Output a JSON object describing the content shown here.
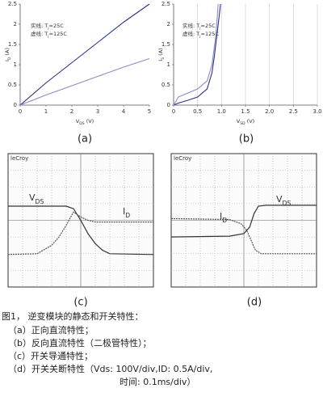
{
  "chart_data": [
    {
      "type": "line",
      "label": "(a)",
      "xlabel": {
        "text": "V",
        "sub": "DS",
        "after": " (V)"
      },
      "ylabel": {
        "text": "I",
        "sub": "D",
        "after": " (A)"
      },
      "xlim": [
        0,
        5
      ],
      "ylim": [
        0,
        2.5
      ],
      "xticks": [
        0,
        1,
        2,
        3,
        4,
        5
      ],
      "yticks": [
        0,
        0.5,
        1,
        1.5,
        2,
        2.5
      ],
      "grid": false,
      "legend": [
        {
          "text": "实线:    T",
          "sub": "j",
          "after": "=25C"
        },
        {
          "text": "虚线:    T",
          "sub": "j",
          "after": "=125C"
        }
      ],
      "series": [
        {
          "color": "#2e3186",
          "x": [
            0,
            1,
            2,
            3,
            4,
            5
          ],
          "values": [
            0,
            0.55,
            1.05,
            1.55,
            2.05,
            2.5
          ]
        },
        {
          "color": "#8a8cc4",
          "x": [
            0,
            1,
            2,
            3,
            4,
            5
          ],
          "values": [
            0,
            0.25,
            0.48,
            0.71,
            0.94,
            1.15
          ]
        }
      ]
    },
    {
      "type": "line",
      "label": "(b)",
      "xlabel": {
        "text": "V",
        "sub": "SD",
        "after": " (V)"
      },
      "ylabel": {
        "text": "I",
        "sub": "S",
        "after": " (A)"
      },
      "xlim": [
        0,
        3
      ],
      "ylim": [
        0,
        2.5
      ],
      "xticks": [
        0,
        0.5,
        {
          "value": 1,
          "label": "1.0"
        },
        1.5,
        {
          "value": 2,
          "label": "2.0"
        },
        2.5,
        {
          "value": 3,
          "label": "3.0"
        }
      ],
      "yticks": [
        0,
        0.5,
        1,
        1.5,
        2,
        2.5
      ],
      "grid": true,
      "legend": [
        {
          "text": "实线:    T",
          "sub": "j",
          "after": "=25C"
        },
        {
          "text": "虚线:    T",
          "sub": "j",
          "after": "=125C"
        }
      ],
      "series": [
        {
          "color": "#2e3186",
          "x": [
            0,
            0.1,
            0.3,
            0.5,
            0.7,
            0.8,
            0.85,
            0.9,
            0.95,
            0.98
          ],
          "values": [
            0,
            0.05,
            0.12,
            0.2,
            0.4,
            0.8,
            1.2,
            1.7,
            2.2,
            2.5
          ]
        },
        {
          "color": "#8a8cc4",
          "x": [
            0,
            0.1,
            0.3,
            0.5,
            0.7,
            0.8,
            0.88,
            0.93
          ],
          "values": [
            0,
            0.2,
            0.3,
            0.4,
            0.6,
            1.0,
            1.7,
            2.5
          ]
        }
      ]
    },
    {
      "type": "scope",
      "label": "(c)",
      "brand": "leCroy",
      "xlim": [
        0,
        10
      ],
      "ylim": [
        0,
        8
      ],
      "series": [
        {
          "label": {
            "text": "V",
            "sub": "DS"
          },
          "color": "#333333",
          "x": [
            0,
            4,
            4.5,
            5,
            5.5,
            6,
            6.5,
            7,
            10
          ],
          "values": [
            4.85,
            4.85,
            4.7,
            4.0,
            3.2,
            2.6,
            2.2,
            2.0,
            1.95
          ]
        },
        {
          "label": {
            "text": "I",
            "sub": "D"
          },
          "color": "#555555",
          "x": [
            0,
            2,
            3,
            3.5,
            4,
            4.5,
            5,
            5.5,
            6,
            7,
            10
          ],
          "values": [
            1.95,
            2.0,
            2.5,
            3.0,
            3.7,
            4.5,
            4.2,
            4.0,
            3.9,
            3.9,
            3.9
          ]
        }
      ]
    },
    {
      "type": "scope",
      "label": "(d)",
      "brand": "leCroy",
      "xlim": [
        0,
        10
      ],
      "ylim": [
        0,
        8
      ],
      "series": [
        {
          "label": {
            "text": "V",
            "sub": "DS"
          },
          "color": "#333333",
          "x": [
            0,
            4,
            5,
            5.4,
            5.7,
            6,
            6.5,
            10
          ],
          "values": [
            3.0,
            3.05,
            3.2,
            3.6,
            4.4,
            4.85,
            4.9,
            4.9
          ]
        },
        {
          "label": {
            "text": "I",
            "sub": "D"
          },
          "color": "#555555",
          "x": [
            0,
            4,
            4.8,
            5.2,
            5.5,
            5.8,
            6.2,
            10
          ],
          "values": [
            4.1,
            4.05,
            3.8,
            3.4,
            2.8,
            2.2,
            2.0,
            2.0
          ]
        }
      ]
    }
  ],
  "caption": {
    "title": "图1，  逆变模块的静态和开关特性：",
    "lines": [
      "（a）正向直流特性；",
      "（b）反向直流特性（二极管特性）；",
      "（c）开关导通特性；",
      "（d）开关关断特性（Vds: 100V/div,ID: 0.5A/div,",
      "时间: 0.1ms/div）"
    ]
  }
}
